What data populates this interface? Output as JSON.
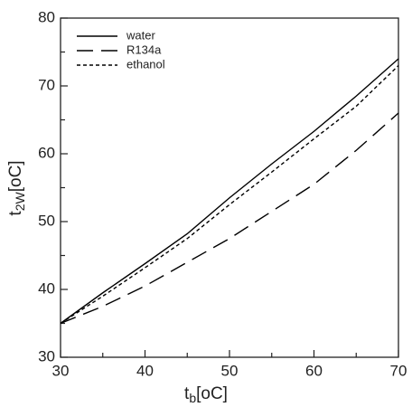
{
  "chart_data": {
    "type": "line",
    "xlabel": {
      "main": "t",
      "sub": "b",
      "unit": "[oC]"
    },
    "ylabel": {
      "main": "t",
      "sub": "2W",
      "unit": "[oC]"
    },
    "x": [
      30,
      35,
      40,
      45,
      50,
      55,
      60,
      65,
      70
    ],
    "series": [
      {
        "name": "water",
        "color": "#000000",
        "dash": "solid",
        "values": [
          35,
          39.5,
          43.8,
          48.2,
          53.5,
          58.5,
          63.3,
          68.5,
          74
        ]
      },
      {
        "name": "R134a",
        "color": "#000000",
        "dash": "long",
        "values": [
          35,
          37.5,
          40.5,
          44,
          47.5,
          51.5,
          55.5,
          60.5,
          66
        ]
      },
      {
        "name": "ethanol",
        "color": "#000000",
        "dash": "short",
        "values": [
          35,
          39,
          43.2,
          47.5,
          52.5,
          57.3,
          62.2,
          67,
          73
        ]
      }
    ],
    "xlim": [
      30,
      70
    ],
    "ylim": [
      30,
      80
    ],
    "xticks": [
      30,
      40,
      50,
      60,
      70
    ],
    "yticks": [
      30,
      40,
      50,
      60,
      70,
      80
    ],
    "xminorticks": [
      35,
      45,
      55,
      65
    ],
    "yminorticks": [
      35,
      45,
      55,
      65,
      75
    ],
    "grid": false,
    "legend": "top-left"
  }
}
